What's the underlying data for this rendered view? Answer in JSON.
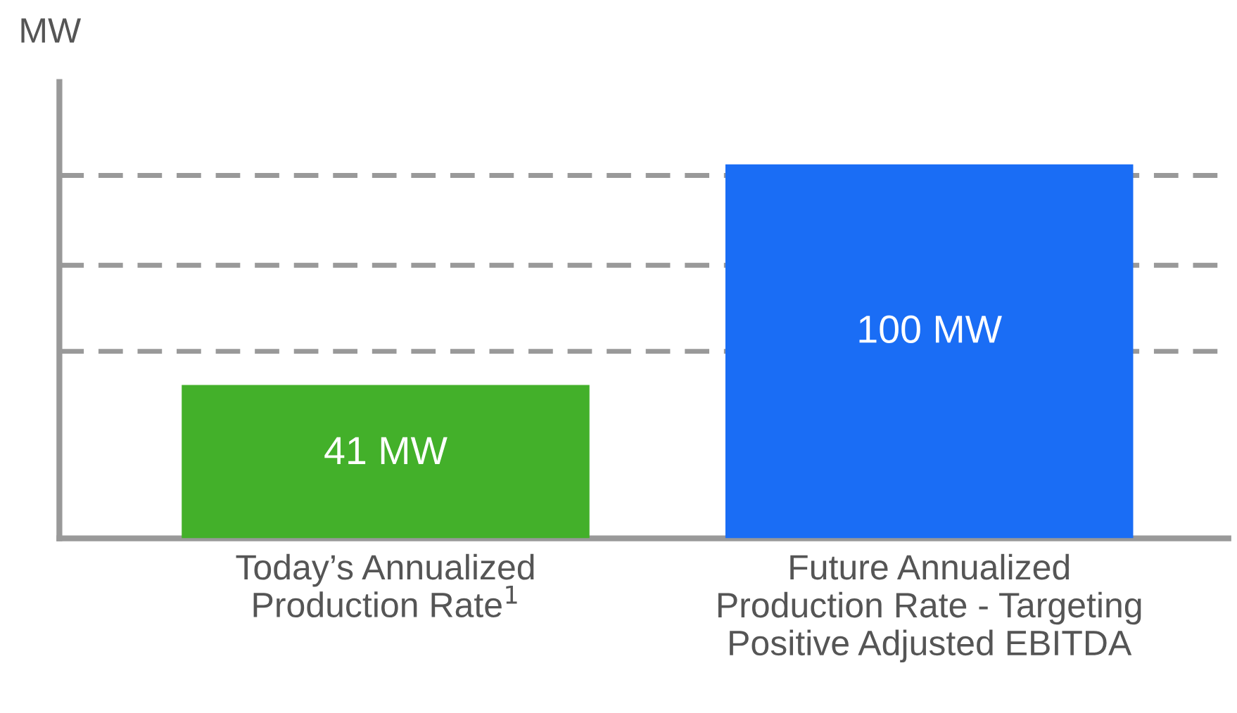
{
  "chart_data": {
    "type": "bar",
    "ylabel": "MW",
    "categories": [
      "Today’s Annualized\nProduction Rate$^{1}$",
      "Future Annualized\nProduction Rate - Targeting\nPositive Adjusted EBITDA"
    ],
    "values": [
      41,
      100
    ],
    "colors": [
      "#43b02a",
      "#1a6df5"
    ],
    "value_labels": [
      "41 MW",
      "100 MW"
    ],
    "ylim": [
      0,
      122
    ],
    "yticks": [
      {
        "value": 50,
        "label": null
      },
      {
        "value": 73,
        "label": null
      },
      {
        "value": 97,
        "label": null
      }
    ],
    "grid": "y",
    "line_style": "dashed",
    "legend": false
  }
}
